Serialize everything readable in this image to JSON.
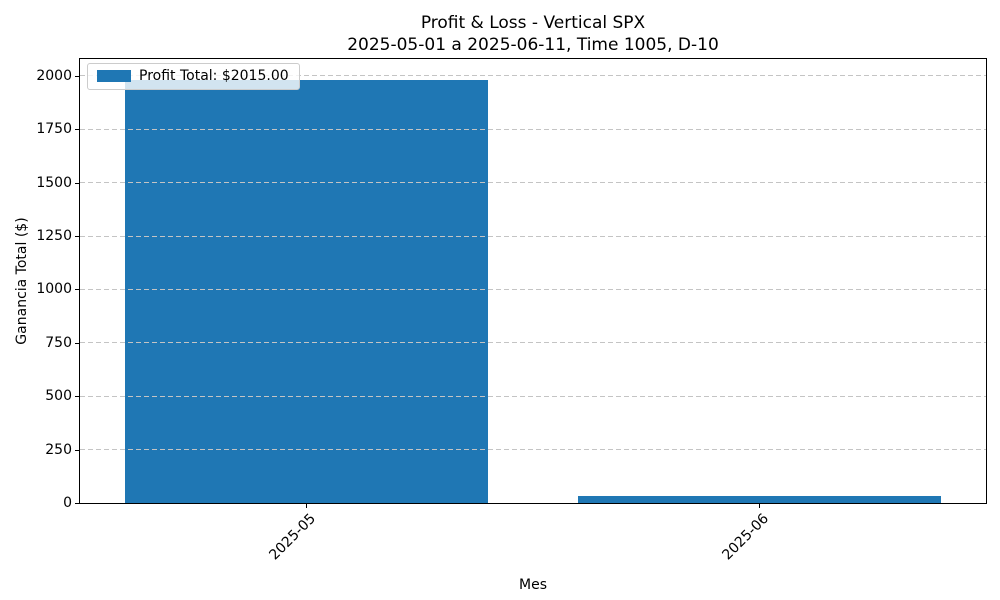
{
  "chart_data": {
    "type": "bar",
    "title": "Profit & Loss - Vertical SPX",
    "subtitle": "2025-05-01 a 2025-06-11, Time 1005, D-10",
    "xlabel": "Mes",
    "ylabel": "Ganancia Total ($)",
    "categories": [
      "2025-05",
      "2025-06"
    ],
    "values": [
      1980,
      35
    ],
    "ylim": [
      0,
      2079
    ],
    "yticks": [
      0,
      250,
      500,
      750,
      1000,
      1250,
      1500,
      1750,
      2000
    ],
    "bar_width_fraction": 0.8,
    "bar_color": "#1f77b4",
    "grid": "horizontal-dashed",
    "grid_color": "#c4c4c4",
    "spine_color": "#000000",
    "background_color": "#ffffff",
    "legend_position": "upper-left",
    "legend": [
      {
        "label": "Profit Total: $2015.00",
        "color": "#1f77b4"
      }
    ]
  }
}
